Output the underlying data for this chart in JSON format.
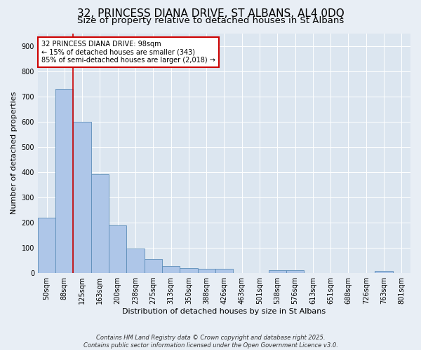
{
  "title": "32, PRINCESS DIANA DRIVE, ST ALBANS, AL4 0DQ",
  "subtitle": "Size of property relative to detached houses in St Albans",
  "xlabel": "Distribution of detached houses by size in St Albans",
  "ylabel": "Number of detached properties",
  "footer_line1": "Contains HM Land Registry data © Crown copyright and database right 2025.",
  "footer_line2": "Contains public sector information licensed under the Open Government Licence v3.0.",
  "categories": [
    "50sqm",
    "88sqm",
    "125sqm",
    "163sqm",
    "200sqm",
    "238sqm",
    "275sqm",
    "313sqm",
    "350sqm",
    "388sqm",
    "426sqm",
    "463sqm",
    "501sqm",
    "538sqm",
    "576sqm",
    "613sqm",
    "651sqm",
    "688sqm",
    "726sqm",
    "763sqm",
    "801sqm"
  ],
  "values": [
    220,
    730,
    600,
    390,
    190,
    97,
    57,
    28,
    20,
    17,
    16,
    0,
    0,
    10,
    10,
    0,
    0,
    0,
    0,
    8,
    0
  ],
  "bar_color": "#aec6e8",
  "bar_edge_color": "#5b8db8",
  "vline_x": 1.5,
  "vline_color": "#cc0000",
  "annotation_text": "32 PRINCESS DIANA DRIVE: 98sqm\n← 15% of detached houses are smaller (343)\n85% of semi-detached houses are larger (2,018) →",
  "annotation_box_color": "#cc0000",
  "annotation_text_color": "#000000",
  "ylim": [
    0,
    950
  ],
  "yticks": [
    0,
    100,
    200,
    300,
    400,
    500,
    600,
    700,
    800,
    900
  ],
  "background_color": "#e8eef5",
  "plot_background_color": "#dce6f0",
  "grid_color": "#ffffff",
  "title_fontsize": 11,
  "subtitle_fontsize": 9.5,
  "axis_label_fontsize": 8,
  "tick_fontsize": 7,
  "annotation_fontsize": 7,
  "footer_fontsize": 6
}
